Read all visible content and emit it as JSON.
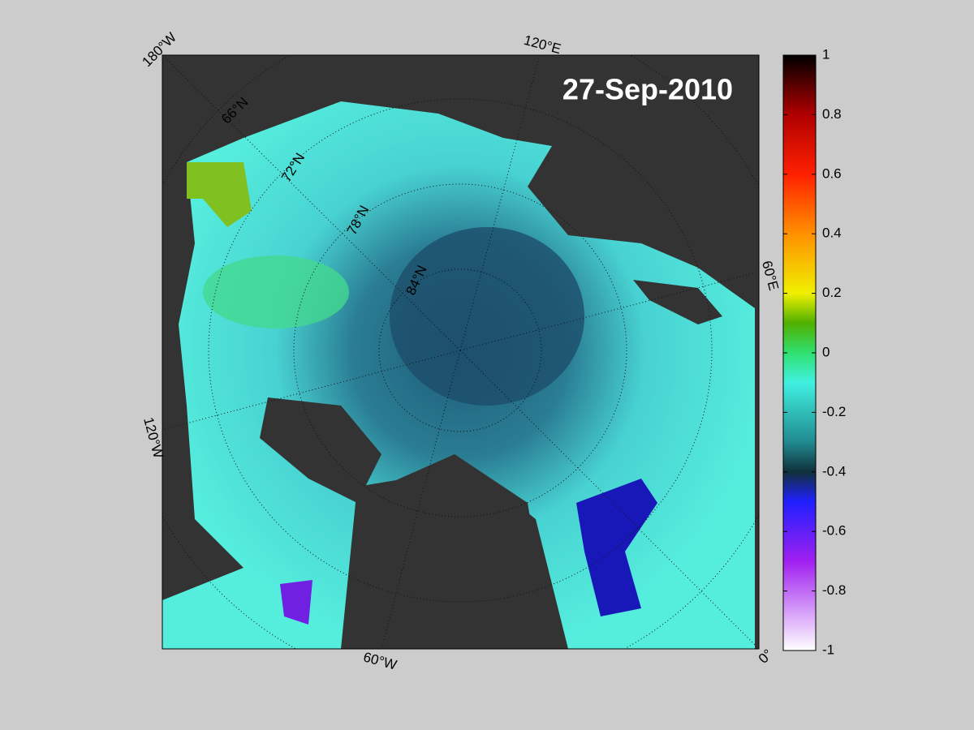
{
  "map": {
    "date": "27-Sep-2010",
    "longitude_labels": [
      "180°W",
      "120°E",
      "60°E",
      "0°",
      "60°W",
      "120°W"
    ],
    "latitude_labels": [
      "66°N",
      "72°N",
      "78°N",
      "84°N"
    ],
    "colorbar": {
      "lim": [
        -1,
        1
      ],
      "ticks": [
        1,
        0.8,
        0.6,
        0.4,
        0.2,
        0,
        -0.2,
        -0.4,
        -0.6,
        -0.8,
        -1
      ]
    }
  }
}
